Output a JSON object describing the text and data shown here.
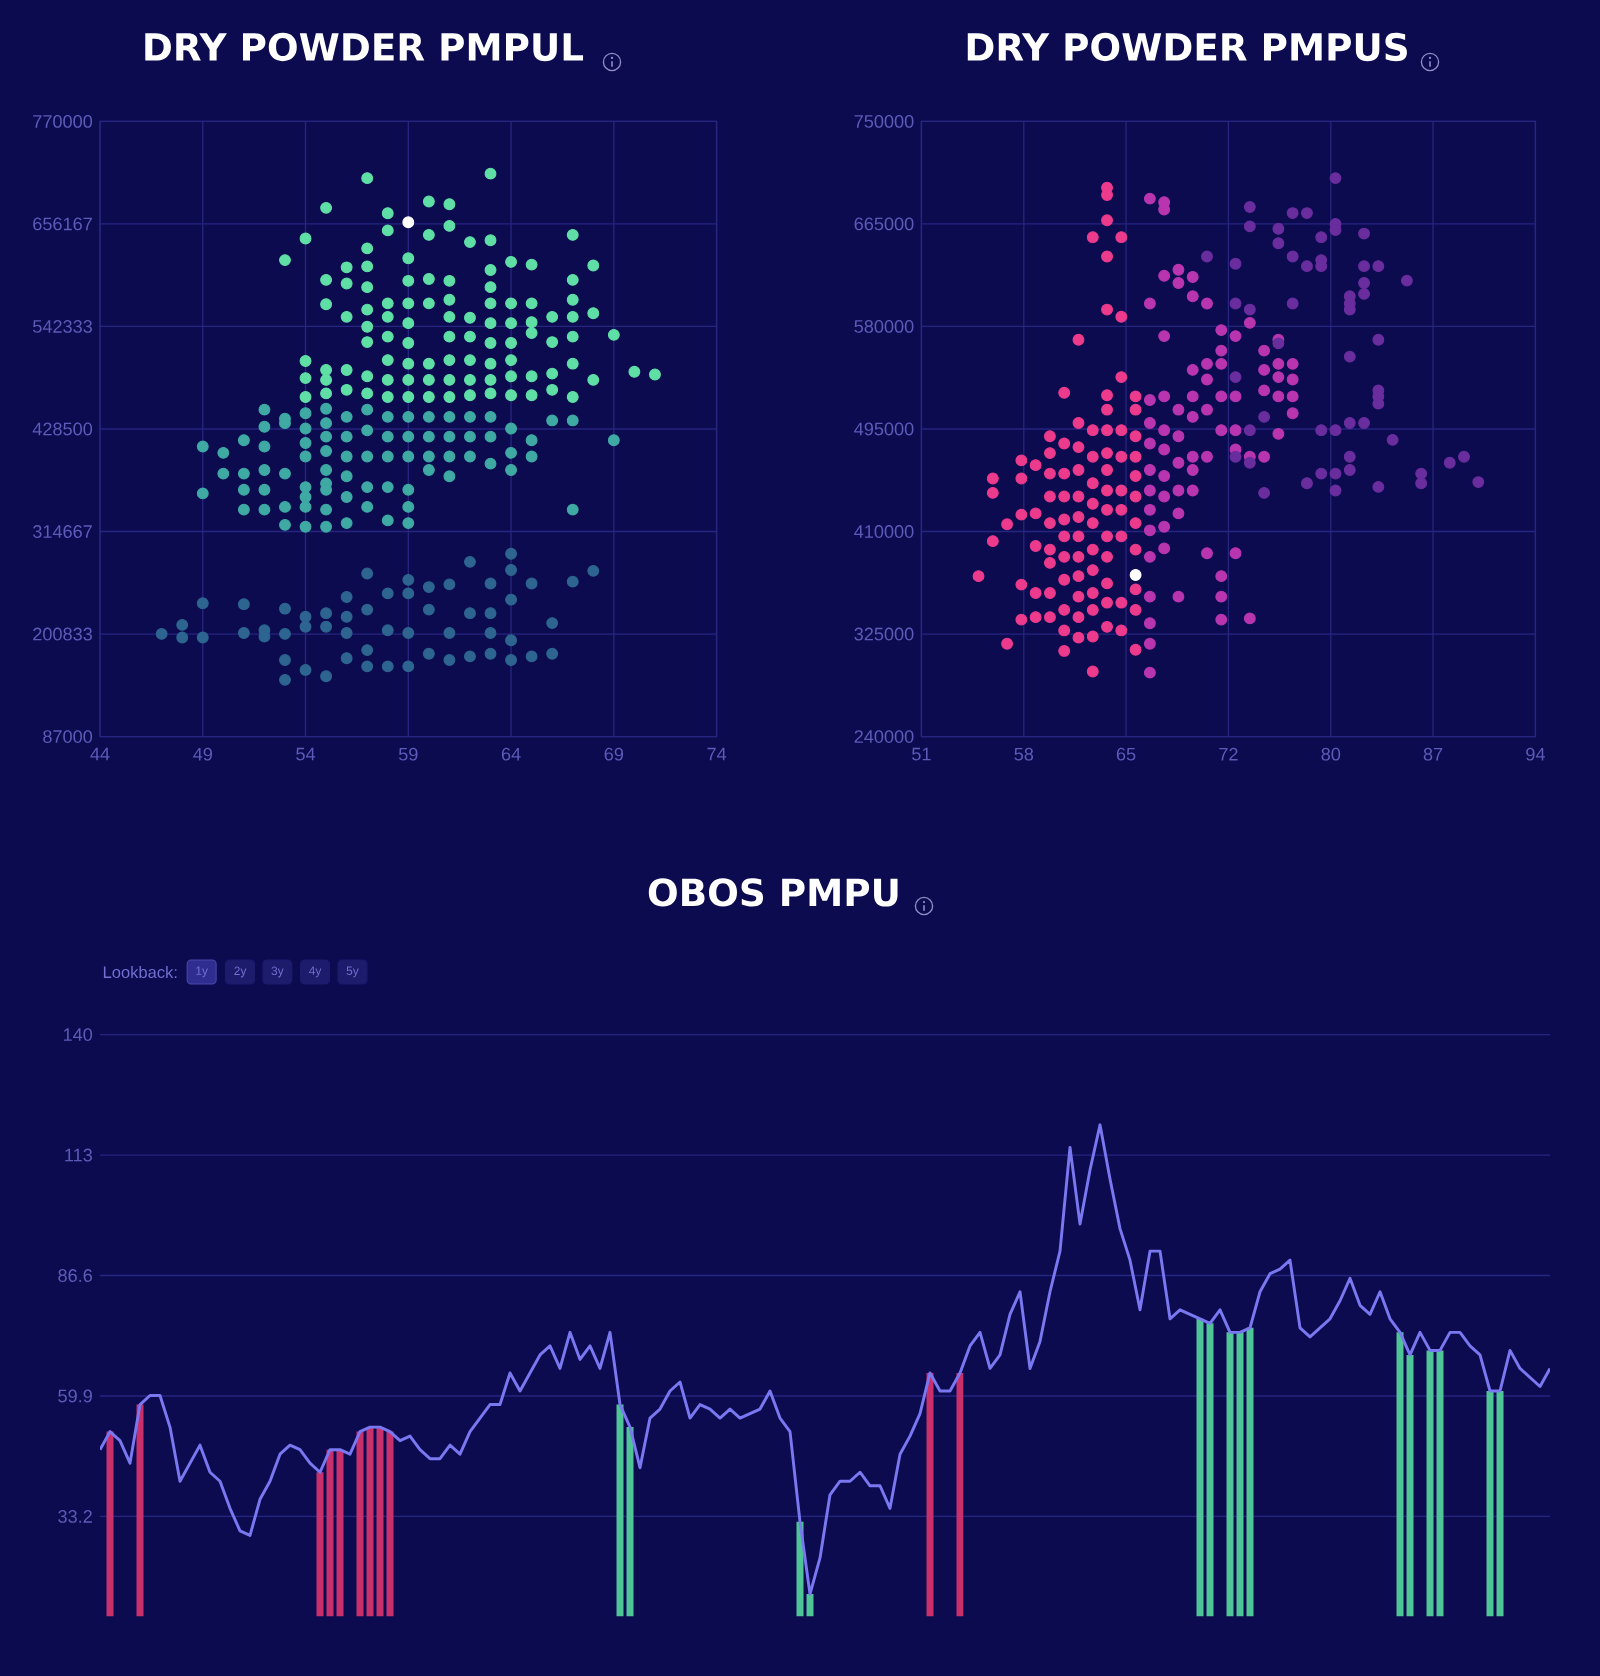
{
  "chart_data": [
    {
      "type": "scatter",
      "title": "DRY POWDER PMPUL",
      "xlim": [
        44,
        74
      ],
      "ylim": [
        87000,
        770000
      ],
      "xticks": [
        44,
        49,
        54,
        59,
        64,
        69,
        74
      ],
      "yticks": [
        87000,
        200833,
        314667,
        428500,
        542333,
        656167,
        770000
      ],
      "grid": true,
      "marker": "circle",
      "series": [
        {
          "color": "#5fdfa6",
          "x": [
            53,
            54,
            54,
            54,
            54,
            55,
            55,
            55,
            55,
            55,
            55,
            56,
            56,
            56,
            56,
            56,
            57,
            57,
            57,
            57,
            57,
            57,
            57,
            57,
            57,
            58,
            58,
            58,
            58,
            58,
            58,
            58,
            58,
            59,
            59,
            59,
            59,
            59,
            59,
            59,
            59,
            60,
            60,
            60,
            60,
            60,
            60,
            60,
            61,
            61,
            61,
            61,
            61,
            61,
            61,
            61,
            61,
            62,
            62,
            62,
            62,
            62,
            62,
            63,
            63,
            63,
            63,
            63,
            63,
            63,
            63,
            63,
            63,
            64,
            64,
            64,
            64,
            64,
            64,
            64,
            65,
            65,
            65,
            65,
            65,
            65,
            66,
            66,
            66,
            66,
            67,
            67,
            67,
            67,
            67,
            67,
            67,
            68,
            68,
            68,
            69,
            70,
            71
          ],
          "values": [
            616000,
            640000,
            504000,
            485000,
            464000,
            674000,
            594000,
            567000,
            494000,
            483000,
            468000,
            608000,
            590000,
            553000,
            494000,
            472000,
            707000,
            629000,
            609000,
            586000,
            561000,
            542000,
            525000,
            487000,
            468000,
            668000,
            649000,
            568000,
            553000,
            531000,
            505000,
            483000,
            464000,
            618000,
            593000,
            568000,
            546000,
            524000,
            501000,
            483000,
            464000,
            681000,
            644000,
            595000,
            568000,
            501000,
            483000,
            464000,
            678000,
            654000,
            593000,
            572000,
            553000,
            531000,
            505000,
            483000,
            464000,
            636000,
            552000,
            531000,
            505000,
            483000,
            466000,
            712000,
            638000,
            605000,
            586000,
            568000,
            546000,
            524000,
            501000,
            483000,
            468000,
            614000,
            568000,
            546000,
            524000,
            505000,
            487000,
            466000,
            611000,
            568000,
            547000,
            535000,
            487000,
            466000,
            553000,
            525000,
            490000,
            472000,
            644000,
            594000,
            572000,
            553000,
            531000,
            501000,
            464000,
            610000,
            557000,
            483000,
            533000,
            492000,
            489000
          ]
        },
        {
          "color": "#3fa9a3",
          "x": [
            49,
            49,
            50,
            50,
            51,
            51,
            51,
            51,
            52,
            52,
            52,
            52,
            52,
            52,
            53,
            53,
            53,
            53,
            53,
            54,
            54,
            54,
            54,
            54,
            54,
            54,
            54,
            55,
            55,
            55,
            55,
            55,
            55,
            55,
            55,
            55,
            56,
            56,
            56,
            56,
            56,
            56,
            57,
            57,
            57,
            57,
            57,
            58,
            58,
            58,
            58,
            58,
            59,
            59,
            59,
            59,
            59,
            59,
            60,
            60,
            60,
            60,
            61,
            61,
            61,
            61,
            62,
            62,
            62,
            63,
            63,
            63,
            64,
            64,
            64,
            65,
            65,
            66,
            67,
            67,
            69
          ],
          "values": [
            409000,
            357000,
            402000,
            379000,
            416000,
            379000,
            361000,
            339000,
            450000,
            431000,
            409000,
            383000,
            361000,
            339000,
            440000,
            435000,
            379000,
            342000,
            322000,
            446000,
            429000,
            413000,
            398000,
            364000,
            353000,
            342000,
            320000,
            451000,
            435000,
            420000,
            404000,
            383000,
            368000,
            361000,
            339000,
            320000,
            442000,
            420000,
            398000,
            376000,
            353000,
            324000,
            450000,
            427000,
            398000,
            364000,
            342000,
            442000,
            420000,
            398000,
            364000,
            327000,
            442000,
            420000,
            398000,
            361000,
            342000,
            324000,
            442000,
            420000,
            398000,
            383000,
            442000,
            420000,
            398000,
            376000,
            442000,
            420000,
            398000,
            442000,
            420000,
            390000,
            429000,
            402000,
            383000,
            416000,
            398000,
            438000,
            438000,
            339000,
            416000
          ]
        },
        {
          "color": "#2d6590",
          "x": [
            47,
            48,
            48,
            49,
            49,
            51,
            51,
            52,
            52,
            53,
            53,
            53,
            53,
            54,
            54,
            54,
            55,
            55,
            55,
            56,
            56,
            56,
            56,
            57,
            57,
            57,
            57,
            58,
            58,
            58,
            59,
            59,
            59,
            59,
            60,
            60,
            60,
            61,
            61,
            61,
            62,
            62,
            62,
            63,
            63,
            63,
            63,
            64,
            64,
            64,
            64,
            64,
            65,
            65,
            66,
            66,
            67,
            68
          ],
          "values": [
            201000,
            211000,
            197000,
            235000,
            197000,
            234000,
            202000,
            205000,
            198000,
            229000,
            201000,
            172000,
            150000,
            220000,
            209000,
            161000,
            224000,
            209000,
            154000,
            242000,
            220000,
            202000,
            174000,
            268000,
            228000,
            183000,
            165000,
            246000,
            205000,
            165000,
            261000,
            246000,
            202000,
            165000,
            253000,
            228000,
            179000,
            256000,
            202000,
            172000,
            281000,
            224000,
            176000,
            257000,
            224000,
            202000,
            179000,
            290000,
            272000,
            239000,
            194000,
            172000,
            257000,
            176000,
            213000,
            179000,
            259000,
            271000
          ]
        },
        {
          "color": "#ffffff",
          "x": [
            59
          ],
          "values": [
            658000
          ]
        }
      ]
    },
    {
      "type": "scatter",
      "title": "DRY POWDER PMPUS",
      "xlim": [
        51,
        94
      ],
      "ylim": [
        240000,
        750000
      ],
      "xticks": [
        51,
        {
          "value": 58.17,
          "label": "58"
        },
        {
          "value": 65.33,
          "label": "65"
        },
        {
          "value": 72.5,
          "label": "72"
        },
        {
          "value": 79.67,
          "label": "80"
        },
        {
          "value": 86.83,
          "label": "87"
        },
        94
      ],
      "yticks": [
        240000,
        325000,
        410000,
        495000,
        580000,
        665000,
        750000
      ],
      "grid": true,
      "marker": "circle",
      "series": [
        {
          "color": "#ec3a8c",
          "x": [
            55,
            56,
            56,
            56,
            57,
            57,
            58,
            58,
            58,
            58,
            58,
            59,
            59,
            59,
            59,
            59,
            60,
            60,
            60,
            60,
            60,
            60,
            60,
            60,
            60,
            61,
            61,
            61,
            61,
            61,
            61,
            61,
            61,
            61,
            61,
            61,
            62,
            62,
            62,
            62,
            62,
            62,
            62,
            62,
            62,
            62,
            62,
            62,
            63,
            63,
            63,
            63,
            63,
            63,
            63,
            63,
            63,
            63,
            63,
            63,
            64,
            64,
            64,
            64,
            64,
            64,
            64,
            64,
            64,
            64,
            64,
            64,
            64,
            64,
            64,
            64,
            64,
            65,
            65,
            65,
            65,
            65,
            65,
            65,
            65,
            65,
            65,
            66,
            66,
            66,
            66,
            66,
            66,
            66,
            66,
            66,
            66,
            66
          ],
          "values": [
            373000,
            454000,
            442000,
            402000,
            416000,
            317000,
            469000,
            454000,
            424000,
            366000,
            337000,
            465000,
            425000,
            398000,
            359000,
            339000,
            489000,
            475000,
            458000,
            439000,
            417000,
            395000,
            384000,
            359000,
            339000,
            525000,
            483000,
            458000,
            439000,
            420000,
            406000,
            389000,
            370000,
            345000,
            328000,
            311000,
            569000,
            500000,
            480000,
            461000,
            439000,
            422000,
            406000,
            389000,
            373000,
            356000,
            339000,
            322000,
            654000,
            494000,
            472000,
            450000,
            433000,
            417000,
            395000,
            378000,
            359000,
            345000,
            323000,
            294000,
            695000,
            689000,
            668000,
            638000,
            594000,
            523000,
            511000,
            494000,
            475000,
            461000,
            444000,
            428000,
            406000,
            389000,
            367000,
            351000,
            331000,
            654000,
            588000,
            538000,
            494000,
            472000,
            444000,
            428000,
            406000,
            351000,
            328000,
            522000,
            511000,
            489000,
            472000,
            456000,
            439000,
            417000,
            395000,
            362000,
            345000,
            312000
          ]
        },
        {
          "color": "#b935b0",
          "x": [
            67,
            67,
            67,
            67,
            67,
            67,
            67,
            67,
            67,
            67,
            67,
            67,
            67,
            67,
            68,
            68,
            68,
            68,
            68,
            68,
            68,
            68,
            68,
            68,
            68,
            69,
            69,
            69,
            69,
            69,
            69,
            69,
            69,
            70,
            70,
            70,
            70,
            70,
            70,
            70,
            70,
            71,
            71,
            71,
            71,
            71,
            71,
            72,
            72,
            72,
            72,
            72,
            72,
            72,
            72,
            73,
            73,
            73,
            73,
            73,
            74,
            74,
            74,
            75,
            75,
            75,
            75,
            76,
            76,
            76,
            76,
            76,
            77,
            77,
            77,
            77
          ],
          "values": [
            686000,
            599000,
            519000,
            500000,
            483000,
            461000,
            444000,
            428000,
            411000,
            389000,
            356000,
            334000,
            317000,
            293000,
            683000,
            677000,
            622000,
            572000,
            522000,
            494000,
            478000,
            456000,
            439000,
            414000,
            396000,
            627000,
            616000,
            511000,
            489000,
            467000,
            444000,
            425000,
            356000,
            621000,
            605000,
            544000,
            522000,
            505000,
            472000,
            461000,
            444000,
            599000,
            549000,
            536000,
            511000,
            472000,
            392000,
            577000,
            560000,
            549000,
            522000,
            494000,
            373000,
            356000,
            337000,
            572000,
            522000,
            494000,
            478000,
            392000,
            583000,
            472000,
            338000,
            560000,
            544000,
            527000,
            472000,
            569000,
            549000,
            538000,
            522000,
            491000,
            549000,
            536000,
            522000,
            508000
          ]
        },
        {
          "color": "#6a2d9e",
          "x": [
            71,
            73,
            73,
            73,
            73,
            74,
            74,
            74,
            74,
            74,
            75,
            75,
            76,
            76,
            76,
            77,
            77,
            77,
            78,
            78,
            78,
            79,
            79,
            79,
            79,
            79,
            80,
            80,
            80,
            80,
            80,
            80,
            81,
            81,
            81,
            81,
            81,
            81,
            81,
            82,
            82,
            82,
            82,
            82,
            83,
            83,
            83,
            83,
            83,
            83,
            84,
            85,
            86,
            86,
            88,
            89,
            90
          ],
          "values": [
            638000,
            632000,
            599000,
            538000,
            472000,
            679000,
            663000,
            594000,
            494000,
            467000,
            505000,
            442000,
            661000,
            649000,
            566000,
            674000,
            638000,
            599000,
            674000,
            630000,
            450000,
            654000,
            635000,
            630000,
            494000,
            458000,
            703000,
            665000,
            660000,
            494000,
            458000,
            444000,
            605000,
            599000,
            594000,
            555000,
            500000,
            472000,
            461000,
            657000,
            630000,
            616000,
            607000,
            500000,
            630000,
            569000,
            527000,
            522000,
            516000,
            447000,
            486000,
            618000,
            458000,
            450000,
            467000,
            472000,
            451000
          ]
        },
        {
          "color": "#ffffff",
          "x": [
            66
          ],
          "values": [
            374000
          ]
        }
      ]
    },
    {
      "type": "line",
      "title": "OBOS PMPU",
      "ylim": [
        11,
        140
      ],
      "yticks": [
        33.2,
        59.9,
        86.6,
        {
          "value": 113.3,
          "label": "113"
        },
        140
      ],
      "grid": "y",
      "tick_labels": "y",
      "annotations": [
        "Lookback:",
        "1y",
        "2y",
        "3y",
        "4y",
        "5y"
      ],
      "categories": [
        null,
        null,
        null,
        null,
        null,
        null,
        null,
        null,
        null,
        null,
        null,
        null,
        null,
        null,
        null,
        null,
        null,
        null,
        null,
        null,
        null,
        null,
        null,
        null,
        null,
        null,
        null,
        null,
        null,
        null,
        null,
        null,
        null,
        null,
        null,
        null,
        null,
        null,
        null,
        null,
        null,
        null,
        null,
        null,
        null,
        null,
        null,
        null,
        null,
        null,
        null,
        null,
        null,
        null,
        null,
        null,
        null,
        null,
        null,
        null,
        null,
        null,
        null,
        null,
        null,
        null,
        null,
        null,
        null,
        null,
        null,
        null,
        null,
        null,
        null,
        null,
        null,
        null,
        null,
        null,
        null,
        null,
        null,
        null,
        null,
        null,
        null,
        null,
        null,
        null,
        null,
        null,
        null,
        null,
        null,
        null,
        null,
        null,
        null,
        null,
        null,
        null,
        null,
        null,
        null,
        null,
        null,
        null,
        null,
        null,
        null,
        null,
        null,
        null,
        null,
        null,
        null,
        null,
        null,
        null,
        null,
        null,
        null,
        null,
        null,
        null,
        null,
        null,
        null,
        null,
        null,
        null,
        null,
        null,
        null,
        null,
        null,
        null,
        null,
        null,
        null,
        null,
        null,
        null,
        null,
        null
      ],
      "series": [
        {
          "type": "line",
          "color": "#7a78f0",
          "values": [
            48,
            52,
            50,
            45,
            58,
            60,
            60,
            53,
            41,
            45,
            49,
            43,
            41,
            35,
            30,
            29,
            37,
            41,
            47,
            49,
            48,
            45,
            43,
            48,
            48,
            47,
            52,
            53,
            53,
            52,
            50,
            51,
            48,
            46,
            46,
            49,
            47,
            52,
            55,
            58,
            58,
            65,
            61,
            65,
            69,
            71,
            66,
            74,
            68,
            71,
            66,
            74,
            58,
            53,
            44,
            55,
            57,
            61,
            63,
            55,
            58,
            57,
            55,
            57,
            55,
            56,
            57,
            61,
            55,
            52,
            32,
            16,
            24,
            38,
            41,
            41,
            43,
            40,
            40,
            35,
            47,
            51,
            56,
            65,
            61,
            61,
            65,
            71,
            74,
            66,
            69,
            78,
            83,
            66,
            72,
            83,
            92,
            115,
            98,
            110,
            120,
            108,
            97,
            90,
            79,
            92,
            92,
            77,
            79,
            78,
            77,
            76,
            79,
            74,
            74,
            75,
            83,
            87,
            88,
            90,
            75,
            73,
            75,
            77,
            81,
            86,
            80,
            78,
            83,
            77,
            74,
            69,
            74,
            70,
            70,
            74,
            74,
            71,
            69,
            61,
            61,
            70,
            66,
            64,
            62,
            66
          ]
        },
        {
          "type": "bar",
          "color": "#c8306c",
          "values": [
            null,
            52,
            null,
            null,
            58,
            null,
            null,
            null,
            null,
            null,
            null,
            null,
            null,
            null,
            null,
            null,
            null,
            null,
            null,
            null,
            null,
            null,
            43,
            48,
            48,
            null,
            52,
            53,
            53,
            52,
            null,
            null,
            null,
            null,
            null,
            null,
            null,
            null,
            null,
            null,
            null,
            null,
            null,
            null,
            null,
            null,
            null,
            null,
            null,
            null,
            null,
            null,
            null,
            null,
            null,
            null,
            null,
            null,
            null,
            null,
            null,
            null,
            null,
            null,
            null,
            null,
            null,
            null,
            null,
            null,
            null,
            null,
            null,
            null,
            null,
            null,
            null,
            null,
            null,
            null,
            null,
            null,
            null,
            65,
            null,
            null,
            65,
            null,
            null,
            null,
            null,
            null,
            null,
            null,
            null,
            null,
            null,
            null,
            null,
            null,
            null,
            null,
            null,
            null,
            null,
            null,
            null,
            null,
            null,
            null,
            null,
            null,
            null,
            null,
            null,
            null,
            null,
            null,
            null,
            null,
            null,
            null,
            null,
            null,
            null,
            null,
            null,
            null,
            null,
            null,
            null,
            null,
            null,
            null,
            null,
            null,
            null,
            null,
            null,
            null,
            null,
            null,
            null,
            null,
            null,
            null
          ]
        },
        {
          "type": "bar",
          "color": "#4fc497",
          "values": [
            null,
            null,
            null,
            null,
            null,
            null,
            null,
            null,
            null,
            null,
            null,
            null,
            null,
            null,
            null,
            null,
            null,
            null,
            null,
            null,
            null,
            null,
            null,
            null,
            null,
            null,
            null,
            null,
            null,
            null,
            null,
            null,
            null,
            null,
            null,
            null,
            null,
            null,
            null,
            null,
            null,
            null,
            null,
            null,
            null,
            null,
            null,
            null,
            null,
            null,
            null,
            null,
            58,
            53,
            null,
            null,
            null,
            null,
            null,
            null,
            null,
            null,
            null,
            null,
            null,
            null,
            null,
            null,
            null,
            null,
            32,
            16,
            null,
            null,
            null,
            null,
            null,
            null,
            null,
            null,
            null,
            null,
            null,
            null,
            null,
            null,
            null,
            null,
            null,
            null,
            null,
            null,
            null,
            null,
            null,
            null,
            null,
            null,
            null,
            null,
            null,
            null,
            null,
            null,
            null,
            null,
            null,
            null,
            null,
            null,
            77,
            76,
            null,
            74,
            74,
            75,
            null,
            null,
            null,
            null,
            null,
            null,
            null,
            null,
            null,
            null,
            null,
            null,
            null,
            null,
            74,
            69,
            null,
            70,
            70,
            null,
            null,
            null,
            null,
            61,
            61,
            null,
            null,
            null,
            null,
            null
          ]
        }
      ]
    }
  ]
}
